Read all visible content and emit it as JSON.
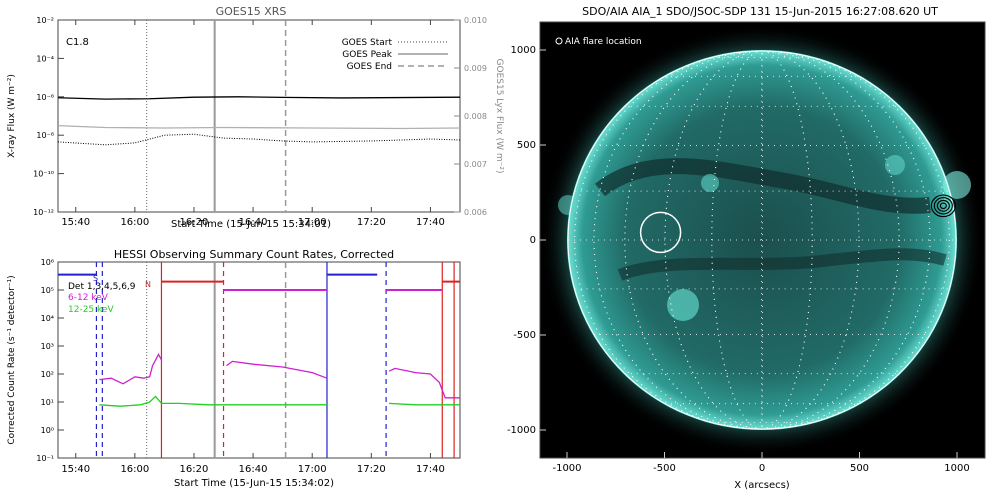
{
  "chart_data": [
    {
      "type": "line",
      "title": "GOES15 XRS",
      "xlabel": "Start Time (15-Jun-15 15:34:01)",
      "ylabel": "X-ray Flux (W m⁻²)",
      "ylabel_right": "GOES15 Lyx Flux (W m⁻²)",
      "flare_class": "C1.8",
      "x_ticks": [
        "15:40",
        "16:00",
        "16:20",
        "16:40",
        "17:00",
        "17:20",
        "17:40"
      ],
      "x_range": [
        "15:34",
        "17:50"
      ],
      "y_ticks": [
        "10⁻²",
        "10⁻⁴",
        "10⁻⁶",
        "10⁻⁸",
        "10⁻¹⁰",
        "10⁻¹²"
      ],
      "y_range_log10": [
        -12,
        -2
      ],
      "y2_ticks": [
        "0.010",
        "0.009",
        "0.008",
        "0.007",
        "0.006"
      ],
      "y2_range": [
        0.006,
        0.01
      ],
      "legend": [
        "GOES Start",
        "GOES Peak",
        "GOES End"
      ],
      "legend_position": "top-right",
      "event_times": {
        "start": "16:04",
        "peak": "16:27",
        "end": "16:51"
      },
      "series": [
        {
          "name": "long",
          "color": "#000000",
          "x": [
            "15:34",
            "15:50",
            "16:05",
            "16:20",
            "16:35",
            "16:50",
            "17:10",
            "17:30",
            "17:50"
          ],
          "log10": [
            -6.05,
            -6.12,
            -6.1,
            -6.02,
            -6.0,
            -6.03,
            -6.06,
            -6.04,
            -6.02
          ]
        },
        {
          "name": "short",
          "color": "#000000",
          "dotted": true,
          "x": [
            "15:34",
            "15:50",
            "16:00",
            "16:10",
            "16:20",
            "16:30",
            "16:40",
            "16:50",
            "17:00",
            "17:20",
            "17:40",
            "17:50"
          ],
          "log10": [
            -8.35,
            -8.5,
            -8.4,
            -8.0,
            -7.95,
            -8.15,
            -8.2,
            -8.3,
            -8.35,
            -8.3,
            -8.2,
            -8.25
          ]
        },
        {
          "name": "lya",
          "color": "#b0b0b0",
          "x": [
            "15:34",
            "15:50",
            "16:10",
            "16:30",
            "17:00",
            "17:30",
            "17:50"
          ],
          "y2": [
            0.0078,
            0.00776,
            0.00775,
            0.00776,
            0.00775,
            0.00774,
            0.00775
          ]
        }
      ]
    },
    {
      "type": "line",
      "title": "HESSI Observing Summary Count Rates, Corrected",
      "xlabel": "Start Time (15-Jun-15 15:34:02)",
      "ylabel": "Corrected Count Rate (s⁻¹ detector⁻¹)",
      "x_ticks": [
        "15:40",
        "16:00",
        "16:20",
        "16:40",
        "17:00",
        "17:20",
        "17:40"
      ],
      "x_range": [
        "15:34",
        "17:50"
      ],
      "y_ticks": [
        "10⁶",
        "10⁵",
        "10⁴",
        "10³",
        "10²",
        "10¹",
        "10⁰",
        "10⁻¹"
      ],
      "y_range_log10": [
        -1,
        6
      ],
      "legend": [
        "Det 1,3,4,5,6,9",
        "6-12 keV",
        "12-25 keV"
      ],
      "markers": [
        "S",
        "N"
      ],
      "series": [
        {
          "name": "6-12 keV",
          "color": "#d020d0",
          "x": [
            "15:48",
            "15:52",
            "15:56",
            "16:00",
            "16:03",
            "16:05",
            "16:06",
            "16:08",
            "16:09"
          ],
          "log10": [
            1.8,
            1.85,
            1.65,
            1.9,
            1.85,
            1.9,
            2.3,
            2.7,
            2.5
          ]
        },
        {
          "name": "6-12 keV b",
          "color": "#d020d0",
          "x": [
            "16:31",
            "16:33",
            "16:40",
            "16:50",
            "17:00",
            "17:05"
          ],
          "log10": [
            2.3,
            2.45,
            2.35,
            2.25,
            2.05,
            1.85
          ]
        },
        {
          "name": "6-12 keV c",
          "color": "#d020d0",
          "x": [
            "17:26",
            "17:28",
            "17:35",
            "17:40",
            "17:43",
            "17:45",
            "17:50"
          ],
          "log10": [
            2.1,
            2.2,
            2.05,
            2.0,
            1.7,
            1.15,
            1.15
          ]
        },
        {
          "name": "12-25 keV",
          "color": "#20d020",
          "x": [
            "15:48",
            "15:55",
            "16:02",
            "16:05",
            "16:07",
            "16:09",
            "16:15",
            "16:25",
            "16:30",
            "16:45",
            "17:00",
            "17:05"
          ],
          "log10": [
            0.9,
            0.85,
            0.9,
            1.0,
            1.2,
            0.95,
            0.95,
            0.9,
            0.9,
            0.9,
            0.9,
            0.9
          ]
        },
        {
          "name": "12-25 keV b",
          "color": "#20d020",
          "x": [
            "17:26",
            "17:35",
            "17:43",
            "17:50"
          ],
          "log10": [
            0.95,
            0.9,
            0.9,
            0.9
          ]
        }
      ],
      "segments_blue": [
        [
          "15:34",
          "15:47",
          5.55
        ],
        [
          "17:05",
          "17:22",
          5.55
        ]
      ],
      "segments_red": [
        [
          "16:09",
          "16:30",
          5.3
        ],
        [
          "17:44",
          "17:50",
          5.3
        ]
      ],
      "segments_magenta": [
        [
          "16:30",
          "17:05",
          5.0
        ],
        [
          "17:25",
          "17:44",
          5.0
        ]
      ]
    },
    {
      "type": "image",
      "title": "SDO/AIA AIA_1 SDO/JSOC-SDP 131 15-Jun-2015 16:27:08.620 UT",
      "legend": [
        "AIA flare location"
      ],
      "xlabel": "X (arcsecs)",
      "x_ticks": [
        -1000,
        -500,
        0,
        500,
        1000
      ],
      "y_ticks": [
        1000,
        500,
        0,
        -500,
        -1000
      ],
      "xlim": [
        -1100,
        1100
      ],
      "ylim": [
        -1100,
        1100
      ],
      "flare_location": {
        "x": -520,
        "y": 40
      },
      "contour_location": {
        "x": 930,
        "y": 180
      }
    }
  ]
}
